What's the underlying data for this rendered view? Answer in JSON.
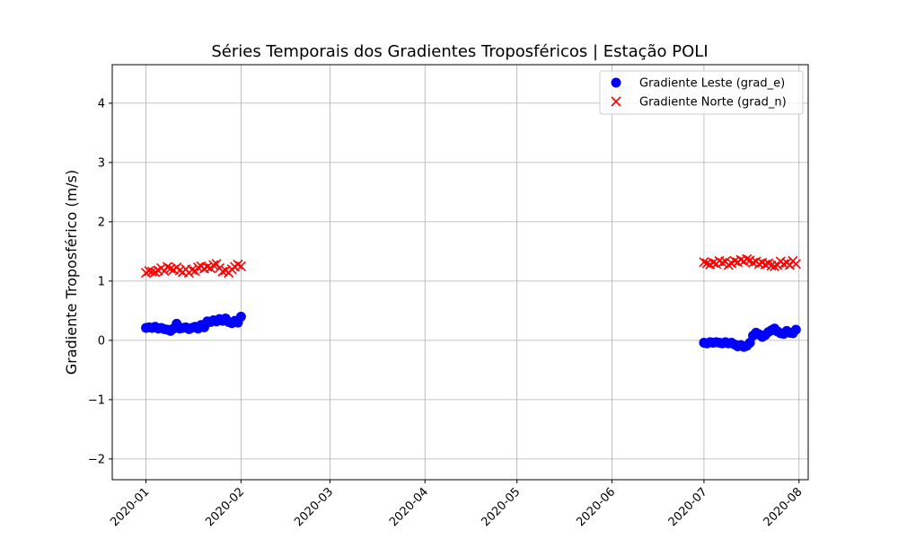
{
  "chart_data": {
    "type": "scatter",
    "title": "Séries Temporais dos Gradientes Troposféricos | Estação POLI",
    "xlabel": "",
    "ylabel": "Gradiente Troposférico (m/s)",
    "x_type": "date",
    "xlim": [
      "2019-12-21",
      "2020-08-04"
    ],
    "ylim": [
      -2.35,
      4.65
    ],
    "x_ticks": [
      "2020-01",
      "2020-02",
      "2020-03",
      "2020-04",
      "2020-05",
      "2020-06",
      "2020-07",
      "2020-08"
    ],
    "y_ticks": [
      -2,
      -1,
      0,
      1,
      2,
      3,
      4
    ],
    "grid": true,
    "legend_position": "top-right",
    "series": [
      {
        "name": "Gradiente Leste (grad_e)",
        "marker": "circle",
        "color": "#0000ff",
        "points": [
          [
            "2020-01-01",
            0.21
          ],
          [
            "2020-01-02",
            0.22
          ],
          [
            "2020-01-03",
            0.21
          ],
          [
            "2020-01-04",
            0.23
          ],
          [
            "2020-01-05",
            0.2
          ],
          [
            "2020-01-06",
            0.21
          ],
          [
            "2020-01-07",
            0.19
          ],
          [
            "2020-01-08",
            0.18
          ],
          [
            "2020-01-09",
            0.16
          ],
          [
            "2020-01-10",
            0.2
          ],
          [
            "2020-01-11",
            0.28
          ],
          [
            "2020-01-12",
            0.2
          ],
          [
            "2020-01-13",
            0.21
          ],
          [
            "2020-01-14",
            0.22
          ],
          [
            "2020-01-15",
            0.19
          ],
          [
            "2020-01-16",
            0.21
          ],
          [
            "2020-01-17",
            0.23
          ],
          [
            "2020-01-18",
            0.2
          ],
          [
            "2020-01-19",
            0.26
          ],
          [
            "2020-01-20",
            0.22
          ],
          [
            "2020-01-21",
            0.32
          ],
          [
            "2020-01-22",
            0.31
          ],
          [
            "2020-01-23",
            0.34
          ],
          [
            "2020-01-24",
            0.32
          ],
          [
            "2020-01-25",
            0.36
          ],
          [
            "2020-01-26",
            0.33
          ],
          [
            "2020-01-27",
            0.37
          ],
          [
            "2020-01-28",
            0.31
          ],
          [
            "2020-01-29",
            0.29
          ],
          [
            "2020-01-30",
            0.33
          ],
          [
            "2020-01-31",
            0.3
          ],
          [
            "2020-02-01",
            0.4
          ],
          [
            "2020-07-01",
            -0.04
          ],
          [
            "2020-07-02",
            -0.05
          ],
          [
            "2020-07-03",
            -0.03
          ],
          [
            "2020-07-04",
            -0.04
          ],
          [
            "2020-07-05",
            -0.03
          ],
          [
            "2020-07-06",
            -0.04
          ],
          [
            "2020-07-07",
            -0.05
          ],
          [
            "2020-07-08",
            -0.03
          ],
          [
            "2020-07-09",
            -0.05
          ],
          [
            "2020-07-10",
            -0.04
          ],
          [
            "2020-07-11",
            -0.07
          ],
          [
            "2020-07-12",
            -0.1
          ],
          [
            "2020-07-13",
            -0.08
          ],
          [
            "2020-07-14",
            -0.11
          ],
          [
            "2020-07-15",
            -0.09
          ],
          [
            "2020-07-16",
            -0.04
          ],
          [
            "2020-07-17",
            0.08
          ],
          [
            "2020-07-18",
            0.13
          ],
          [
            "2020-07-19",
            0.1
          ],
          [
            "2020-07-20",
            0.06
          ],
          [
            "2020-07-21",
            0.09
          ],
          [
            "2020-07-22",
            0.14
          ],
          [
            "2020-07-23",
            0.17
          ],
          [
            "2020-07-24",
            0.2
          ],
          [
            "2020-07-25",
            0.15
          ],
          [
            "2020-07-26",
            0.12
          ],
          [
            "2020-07-27",
            0.11
          ],
          [
            "2020-07-28",
            0.16
          ],
          [
            "2020-07-29",
            0.13
          ],
          [
            "2020-07-30",
            0.12
          ],
          [
            "2020-07-31",
            0.18
          ]
        ]
      },
      {
        "name": "Gradiente Norte (grad_n)",
        "marker": "x",
        "color": "#ff0000",
        "points": [
          [
            "2020-01-01",
            1.14
          ],
          [
            "2020-01-02",
            1.17
          ],
          [
            "2020-01-03",
            1.16
          ],
          [
            "2020-01-04",
            1.15
          ],
          [
            "2020-01-05",
            1.18
          ],
          [
            "2020-01-06",
            1.22
          ],
          [
            "2020-01-07",
            1.17
          ],
          [
            "2020-01-08",
            1.24
          ],
          [
            "2020-01-09",
            1.21
          ],
          [
            "2020-01-10",
            1.19
          ],
          [
            "2020-01-11",
            1.23
          ],
          [
            "2020-01-12",
            1.18
          ],
          [
            "2020-01-13",
            1.15
          ],
          [
            "2020-01-14",
            1.2
          ],
          [
            "2020-01-15",
            1.14
          ],
          [
            "2020-01-16",
            1.19
          ],
          [
            "2020-01-17",
            1.17
          ],
          [
            "2020-01-18",
            1.23
          ],
          [
            "2020-01-19",
            1.25
          ],
          [
            "2020-01-20",
            1.21
          ],
          [
            "2020-01-21",
            1.24
          ],
          [
            "2020-01-22",
            1.22
          ],
          [
            "2020-01-23",
            1.27
          ],
          [
            "2020-01-24",
            1.29
          ],
          [
            "2020-01-25",
            1.22
          ],
          [
            "2020-01-26",
            1.16
          ],
          [
            "2020-01-27",
            1.18
          ],
          [
            "2020-01-28",
            1.14
          ],
          [
            "2020-01-29",
            1.2
          ],
          [
            "2020-01-30",
            1.24
          ],
          [
            "2020-01-31",
            1.28
          ],
          [
            "2020-02-01",
            1.25
          ],
          [
            "2020-07-01",
            1.32
          ],
          [
            "2020-07-02",
            1.3
          ],
          [
            "2020-07-03",
            1.28
          ],
          [
            "2020-07-04",
            1.31
          ],
          [
            "2020-07-05",
            1.29
          ],
          [
            "2020-07-06",
            1.34
          ],
          [
            "2020-07-07",
            1.31
          ],
          [
            "2020-07-08",
            1.33
          ],
          [
            "2020-07-09",
            1.27
          ],
          [
            "2020-07-10",
            1.3
          ],
          [
            "2020-07-11",
            1.34
          ],
          [
            "2020-07-12",
            1.32
          ],
          [
            "2020-07-13",
            1.36
          ],
          [
            "2020-07-14",
            1.33
          ],
          [
            "2020-07-15",
            1.37
          ],
          [
            "2020-07-16",
            1.35
          ],
          [
            "2020-07-17",
            1.31
          ],
          [
            "2020-07-18",
            1.33
          ],
          [
            "2020-07-19",
            1.29
          ],
          [
            "2020-07-20",
            1.31
          ],
          [
            "2020-07-21",
            1.28
          ],
          [
            "2020-07-22",
            1.3
          ],
          [
            "2020-07-23",
            1.26
          ],
          [
            "2020-07-24",
            1.25
          ],
          [
            "2020-07-25",
            1.27
          ],
          [
            "2020-07-26",
            1.33
          ],
          [
            "2020-07-27",
            1.29
          ],
          [
            "2020-07-28",
            1.31
          ],
          [
            "2020-07-29",
            1.27
          ],
          [
            "2020-07-30",
            1.34
          ],
          [
            "2020-07-31",
            1.29
          ]
        ]
      }
    ]
  }
}
